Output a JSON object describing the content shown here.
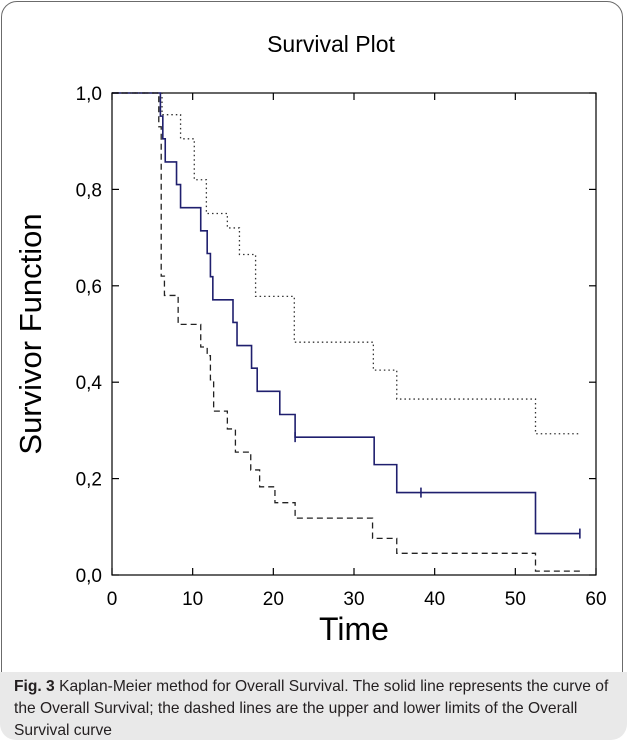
{
  "chart_data": {
    "type": "line",
    "title": "Survival Plot",
    "xlabel": "Time",
    "ylabel": "Survivor Function",
    "xlim": [
      0,
      60
    ],
    "ylim": [
      0,
      1
    ],
    "x_ticks": [
      "0",
      "10",
      "20",
      "30",
      "40",
      "50",
      "60"
    ],
    "y_ticks": [
      "0,0",
      "0,2",
      "0,4",
      "0,6",
      "0,8",
      "1,0"
    ],
    "grid": false,
    "series": [
      {
        "style": "solid",
        "color": "#1f1f6e",
        "steps": [
          [
            0,
            1.0
          ],
          [
            6,
            0.952
          ],
          [
            6.3,
            0.905
          ],
          [
            6.6,
            0.857
          ],
          [
            8,
            0.81
          ],
          [
            8.5,
            0.762
          ],
          [
            11,
            0.714
          ],
          [
            11.8,
            0.667
          ],
          [
            12.2,
            0.619
          ],
          [
            12.5,
            0.571
          ],
          [
            15,
            0.524
          ],
          [
            15.5,
            0.476
          ],
          [
            17.3,
            0.429
          ],
          [
            18,
            0.381
          ],
          [
            20.8,
            0.333
          ],
          [
            22.7,
            0.286
          ],
          [
            32.5,
            0.229
          ],
          [
            35.3,
            0.171
          ],
          [
            52.5,
            0.086
          ],
          [
            58,
            0.086
          ]
        ],
        "censored": [
          22.7,
          38.3,
          58
        ]
      },
      {
        "style": "dotted",
        "color": "#333333",
        "steps": [
          [
            0,
            1.0
          ],
          [
            6.2,
            0.955
          ],
          [
            8.5,
            0.905
          ],
          [
            10.2,
            0.82
          ],
          [
            11.7,
            0.75
          ],
          [
            14.3,
            0.72
          ],
          [
            15.8,
            0.665
          ],
          [
            17.8,
            0.578
          ],
          [
            22.6,
            0.483
          ],
          [
            32.4,
            0.425
          ],
          [
            35.3,
            0.365
          ],
          [
            52.5,
            0.293
          ],
          [
            58,
            0.293
          ]
        ]
      },
      {
        "style": "dashed",
        "color": "#222222",
        "steps": [
          [
            0,
            1.0
          ],
          [
            5.8,
            0.93
          ],
          [
            6.1,
            0.62
          ],
          [
            6.5,
            0.58
          ],
          [
            8.2,
            0.52
          ],
          [
            11,
            0.473
          ],
          [
            11.8,
            0.455
          ],
          [
            12.2,
            0.405
          ],
          [
            12.6,
            0.34
          ],
          [
            14.3,
            0.303
          ],
          [
            15.3,
            0.255
          ],
          [
            17.2,
            0.218
          ],
          [
            18.3,
            0.183
          ],
          [
            20.2,
            0.15
          ],
          [
            22.7,
            0.118
          ],
          [
            32.3,
            0.076
          ],
          [
            35.3,
            0.045
          ],
          [
            52.5,
            0.008
          ],
          [
            58,
            0.008
          ]
        ]
      }
    ]
  },
  "caption": {
    "label": "Fig. 3",
    "text": " Kaplan-Meier method for Overall Survival. The solid line represents the curve of the Overall Survival; the dashed lines are the upper and lower limits of the Overall Survival curve"
  }
}
